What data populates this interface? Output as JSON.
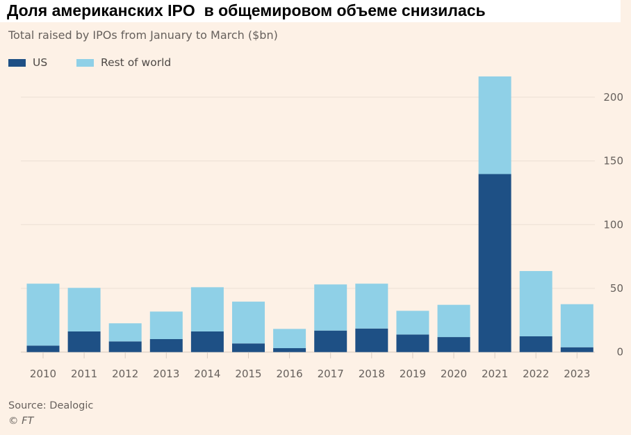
{
  "title": "Доля американских IPO  в общемировом объеме снизилась",
  "chart_data": {
    "type": "bar",
    "stacked": true,
    "subtitle": "Total raised by IPOs from January to March ($bn)",
    "categories": [
      "2010",
      "2011",
      "2012",
      "2013",
      "2014",
      "2015",
      "2016",
      "2017",
      "2018",
      "2019",
      "2020",
      "2021",
      "2022",
      "2023"
    ],
    "series": [
      {
        "name": "US",
        "color": "#1e5085",
        "values": [
          5.1,
          16.2,
          8.4,
          10.2,
          16.2,
          6.8,
          3.1,
          16.9,
          18.5,
          13.8,
          11.8,
          139.7,
          12.4,
          3.8
        ]
      },
      {
        "name": "Rest of world",
        "color": "#8fd0e7",
        "values": [
          48.6,
          34.2,
          14.2,
          21.6,
          34.7,
          32.8,
          15.1,
          36.2,
          35.2,
          18.6,
          25.3,
          76.6,
          51.2,
          33.8
        ]
      }
    ],
    "ylim": [
      0,
      225
    ],
    "yticks": [
      0,
      50,
      100,
      150,
      200
    ],
    "yaxis_side": "right",
    "grid": true,
    "legend_position": "top-left",
    "source": "Source: Dealogic",
    "credit": "© FT"
  }
}
